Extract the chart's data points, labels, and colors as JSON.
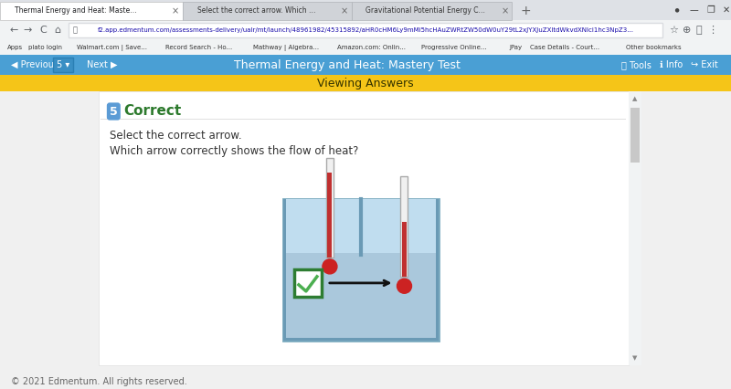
{
  "page_bg": "#f1f3f4",
  "content_bg": "#ffffff",
  "tab_bar_bg": "#dee1e6",
  "active_tab_bg": "#ffffff",
  "tab_text_active": "#202124",
  "tab_text_inactive": "#5f6368",
  "url_bar_bg": "#ffffff",
  "url_bar_border": "#dadce0",
  "url_bar_text": "#1a0dab",
  "bookmark_bg": "#f1f3f4",
  "nav_bar_bg": "#4a9fd4",
  "nav_bar_text": "#ffffff",
  "nav_title": "Thermal Energy and Heat: Mastery Test",
  "viewing_banner_bg": "#f5c518",
  "viewing_banner_text": "Viewing Answers",
  "viewing_banner_color": "#333300",
  "question_num": "5",
  "correct_label": "Correct",
  "correct_color": "#2d7a2d",
  "line1": "Select the correct arrow.",
  "line2": "Which arrow correctly shows the flow of heat?",
  "tank_bg": "#b8d5e8",
  "tank_lower_bg": "#8fbdd8",
  "tank_border": "#6fa8c8",
  "water_upper_bg": "#c8e0ee",
  "therm_tube_bg": "#ffffff",
  "therm_tube_border": "#bbbbbb",
  "therm_mercury": "#c03030",
  "therm_bulb": "#cc2222",
  "arrow_color": "#111111",
  "box_border": "#2e7d32",
  "check_color": "#4caf50",
  "footer_text": "© 2021 Edmentum. All rights reserved.",
  "footer_color": "#666666",
  "scrollbar_bg": "#f1f3f4",
  "scrollbar_thumb": "#c0c0c0",
  "separator_color": "#e0e0e0",
  "tab1": "Thermal Energy and Heat: Maste…",
  "tab2": "Select the correct arrow. Which …",
  "tab3": "Gravitational Potential Energy C…",
  "url_text": "f2.app.edmentum.com/assessments-delivery/ualr/mt/launch/48961982/45315892/aHR0cHM6Ly9mMi5hcHAuZWRtZW50dW0uY29tL2xJYXJuZXltdWkvdXNlci1hc3NpZ3...",
  "bookmarks": [
    "Apps",
    "plato login",
    "Walmart.com | Save...",
    "Record Search - Ho...",
    "Mathway | Algebra...",
    "Amazon.com: Onlin...",
    "Progressive Online...",
    "JPay",
    "Case Details - Court...",
    "Other bookmarks"
  ],
  "nav_left": [
    "Previous",
    "5",
    "Next"
  ],
  "nav_right": [
    "Tools",
    "Info",
    "Exit"
  ]
}
